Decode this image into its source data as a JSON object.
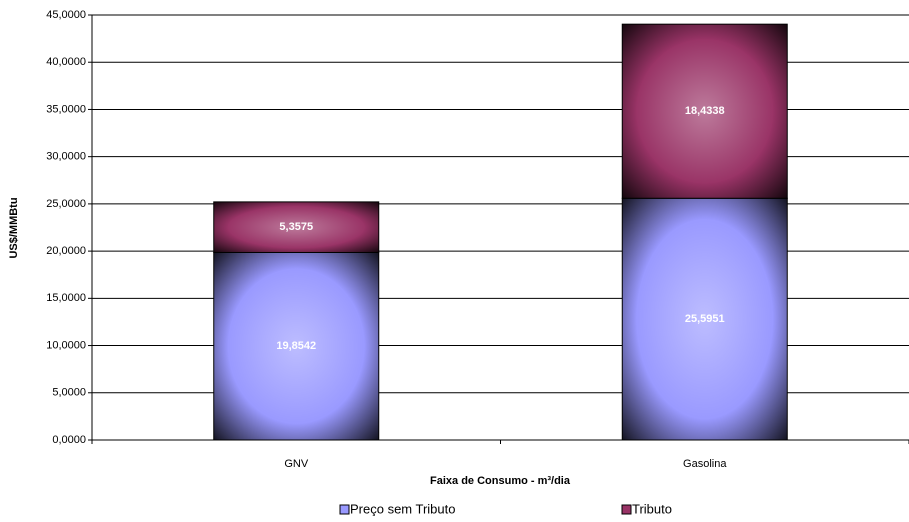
{
  "chart_data": {
    "type": "stacked-bar",
    "x_label": "Faixa de Consumo  - m³/dia",
    "y_label": "US$/MMBtu",
    "categories": [
      "GNV",
      "Gasolina"
    ],
    "series": [
      {
        "name": "Preço sem Tributo",
        "color": "#9999ff",
        "values": [
          19.8542,
          25.5951
        ],
        "value_labels": [
          "19,8542",
          "25,5951"
        ]
      },
      {
        "name": "Tributo",
        "color": "#993366",
        "values": [
          5.3575,
          18.4338
        ],
        "value_labels": [
          "5,3575",
          "18,4338"
        ]
      }
    ],
    "ylim": [
      0,
      45
    ],
    "yticks": [
      {
        "value": 0,
        "label": "0,0000"
      },
      {
        "value": 5,
        "label": "5,0000"
      },
      {
        "value": 10,
        "label": "10,0000"
      },
      {
        "value": 15,
        "label": "15,0000"
      },
      {
        "value": 20,
        "label": "20,0000"
      },
      {
        "value": 25,
        "label": "25,0000"
      },
      {
        "value": 30,
        "label": "30,0000"
      },
      {
        "value": 35,
        "label": "35,0000"
      },
      {
        "value": 40,
        "label": "40,0000"
      },
      {
        "value": 45,
        "label": "45,0000"
      }
    ],
    "grid": true,
    "legend": "bottom"
  }
}
